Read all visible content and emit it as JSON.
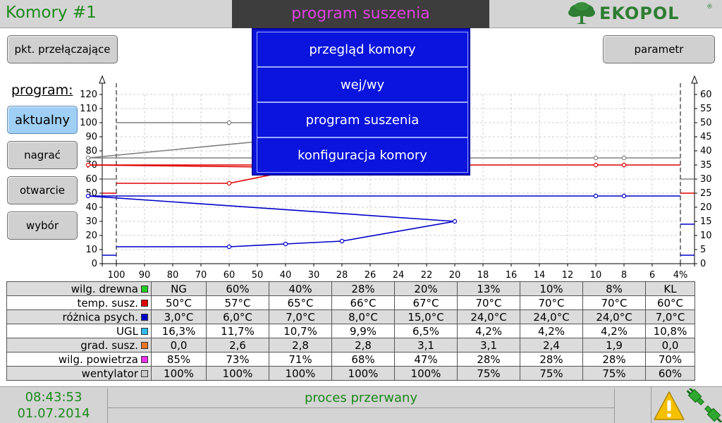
{
  "header": {
    "title": "Komory #1",
    "center_title": "program suszenia",
    "logo_text": "EKOPOL",
    "logo_reg": "®"
  },
  "buttons": {
    "pkt": "pkt. przełączające",
    "parametr": "parametr",
    "program_label": "program:",
    "aktualny": "aktualny",
    "nagrac": "nagrać",
    "otwarcie": "otwarcie",
    "wybor": "wybór"
  },
  "menu": {
    "items": [
      "przegląd komory",
      "wej/wy",
      "program suszenia",
      "konfiguracja komory"
    ]
  },
  "chart_data": {
    "type": "line",
    "x": [
      100,
      60,
      40,
      28,
      20,
      13,
      10,
      8,
      4
    ],
    "x_ticks": [
      "100",
      "90",
      "80",
      "70",
      "60",
      "50",
      "40",
      "30",
      "28",
      "26",
      "24",
      "22",
      "20",
      "18",
      "16",
      "14",
      "12",
      "10",
      "8",
      "6",
      "4%"
    ],
    "y_left": {
      "ticks": [
        0,
        10,
        20,
        30,
        40,
        50,
        60,
        70,
        80,
        90,
        100,
        110,
        120
      ],
      "range": [
        0,
        120
      ]
    },
    "y_right": {
      "ticks": [
        0,
        5,
        10,
        15,
        20,
        25,
        30,
        35,
        40,
        45,
        50,
        55,
        60
      ],
      "range": [
        0,
        60
      ]
    },
    "series": [
      {
        "color": "#808080",
        "values": [
          100,
          100,
          100,
          100,
          100,
          75,
          75,
          75,
          75
        ],
        "kl_value": 60
      },
      {
        "color": "#e00000",
        "values": [
          57,
          57,
          65,
          66,
          67,
          70,
          70,
          70,
          70
        ],
        "kl_value": 50
      },
      {
        "color": "#0000c8",
        "values": [
          12,
          12,
          14,
          16,
          30,
          48,
          48,
          48,
          48
        ],
        "kl_value": 6
      },
      {
        "color": "#0000c8",
        "kl_value_right": 14
      }
    ],
    "grid": true
  },
  "table": {
    "rows": [
      {
        "label": "wilg. drewna",
        "color": "#22cc22",
        "values": [
          "NG",
          "60%",
          "40%",
          "28%",
          "20%",
          "13%",
          "10%",
          "8%",
          "KL"
        ]
      },
      {
        "label": "temp. susz.",
        "color": "#e00000",
        "values": [
          "50°C",
          "57°C",
          "65°C",
          "66°C",
          "67°C",
          "70°C",
          "70°C",
          "70°C",
          "60°C"
        ]
      },
      {
        "label": "różnica psych.",
        "color": "#0000c8",
        "values": [
          "3,0°C",
          "6,0°C",
          "7,0°C",
          "8,0°C",
          "15,0°C",
          "24,0°C",
          "24,0°C",
          "24,0°C",
          "7,0°C"
        ]
      },
      {
        "label": "UGL",
        "color": "#33bbee",
        "values": [
          "16,3%",
          "11,7%",
          "10,7%",
          "9,9%",
          "6,5%",
          "4,2%",
          "4,2%",
          "4,2%",
          "10,8%"
        ]
      },
      {
        "label": "grad. susz.",
        "color": "#ee7722",
        "values": [
          "0,0",
          "2,6",
          "2,8",
          "2,8",
          "3,1",
          "3,1",
          "2,4",
          "1,9",
          "0,0"
        ]
      },
      {
        "label": "wilg. powietrza",
        "color": "#ee33ee",
        "values": [
          "85%",
          "73%",
          "71%",
          "68%",
          "47%",
          "28%",
          "28%",
          "28%",
          "70%"
        ]
      },
      {
        "label": "wentylator",
        "color": "#cccccc",
        "values": [
          "100%",
          "100%",
          "100%",
          "100%",
          "100%",
          "75%",
          "75%",
          "75%",
          "60%"
        ]
      }
    ]
  },
  "footer": {
    "time": "08:43:53",
    "date": "01.07.2014",
    "status": "proces przerwany"
  }
}
